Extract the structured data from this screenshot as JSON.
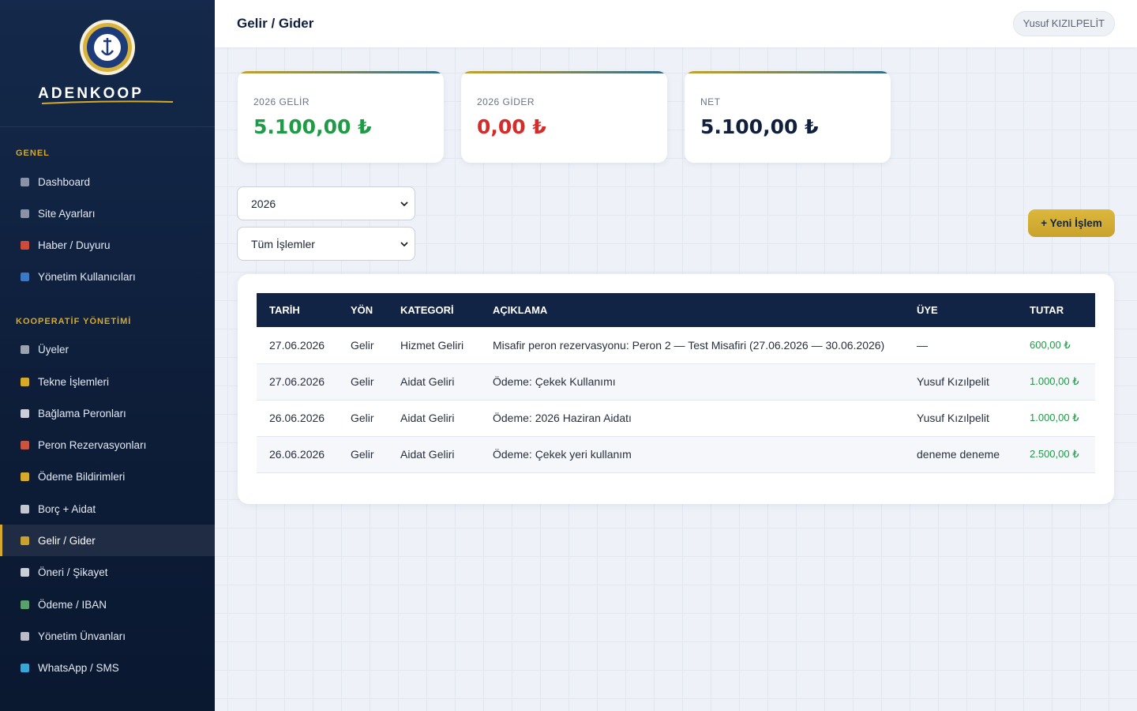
{
  "sidebar": {
    "brand": "ADENKOOP",
    "sections": [
      {
        "title": "GENEL",
        "items": [
          "Dashboard",
          "Site Ayarları",
          "Haber / Duyuru",
          "Yönetim Kullanıcıları"
        ]
      },
      {
        "title": "KOOPERATİF YÖNETİMİ",
        "items": [
          "Üyeler",
          "Tekne İşlemleri",
          "Bağlama Peronları",
          "Peron Rezervasyonları",
          "Ödeme Bildirimleri",
          "Borç + Aidat",
          "Gelir / Gider",
          "Öneri / Şikayet",
          "Ödeme / IBAN",
          "Yönetim Ünvanları",
          "WhatsApp / SMS"
        ]
      }
    ]
  },
  "header": {
    "title": "Gelir / Gider",
    "user": "Yusuf KIZILPELİT"
  },
  "cards": [
    {
      "label": "2026 GELİR",
      "value": "5.100,00 ₺"
    },
    {
      "label": "2026 GİDER",
      "value": "0,00 ₺"
    },
    {
      "label": "NET",
      "value": "5.100,00 ₺"
    }
  ],
  "filters": {
    "year": "2026",
    "type": "Tüm İşlemler"
  },
  "new_button": "+ Yeni İşlem",
  "table": {
    "headers": [
      "TARİH",
      "YÖN",
      "KATEGORİ",
      "AÇIKLAMA",
      "ÜYE",
      "TUTAR"
    ],
    "rows": [
      [
        "27.06.2026",
        "Gelir",
        "Hizmet Geliri",
        "Misafir peron rezervasyonu: Peron 2 — Test Misafiri (27.06.2026 — 30.06.2026)",
        "—",
        "600,00 ₺"
      ],
      [
        "27.06.2026",
        "Gelir",
        "Aidat Geliri",
        "Ödeme: Çekek Kullanımı",
        "Yusuf Kızılpelit",
        "1.000,00 ₺"
      ],
      [
        "26.06.2026",
        "Gelir",
        "Aidat Geliri",
        "Ödeme: 2026 Haziran Aidatı",
        "Yusuf Kızılpelit",
        "1.000,00 ₺"
      ],
      [
        "26.06.2026",
        "Gelir",
        "Aidat Geliri",
        "Ödeme: Çekek yeri kullanım",
        "deneme deneme",
        "2.500,00 ₺"
      ]
    ]
  }
}
